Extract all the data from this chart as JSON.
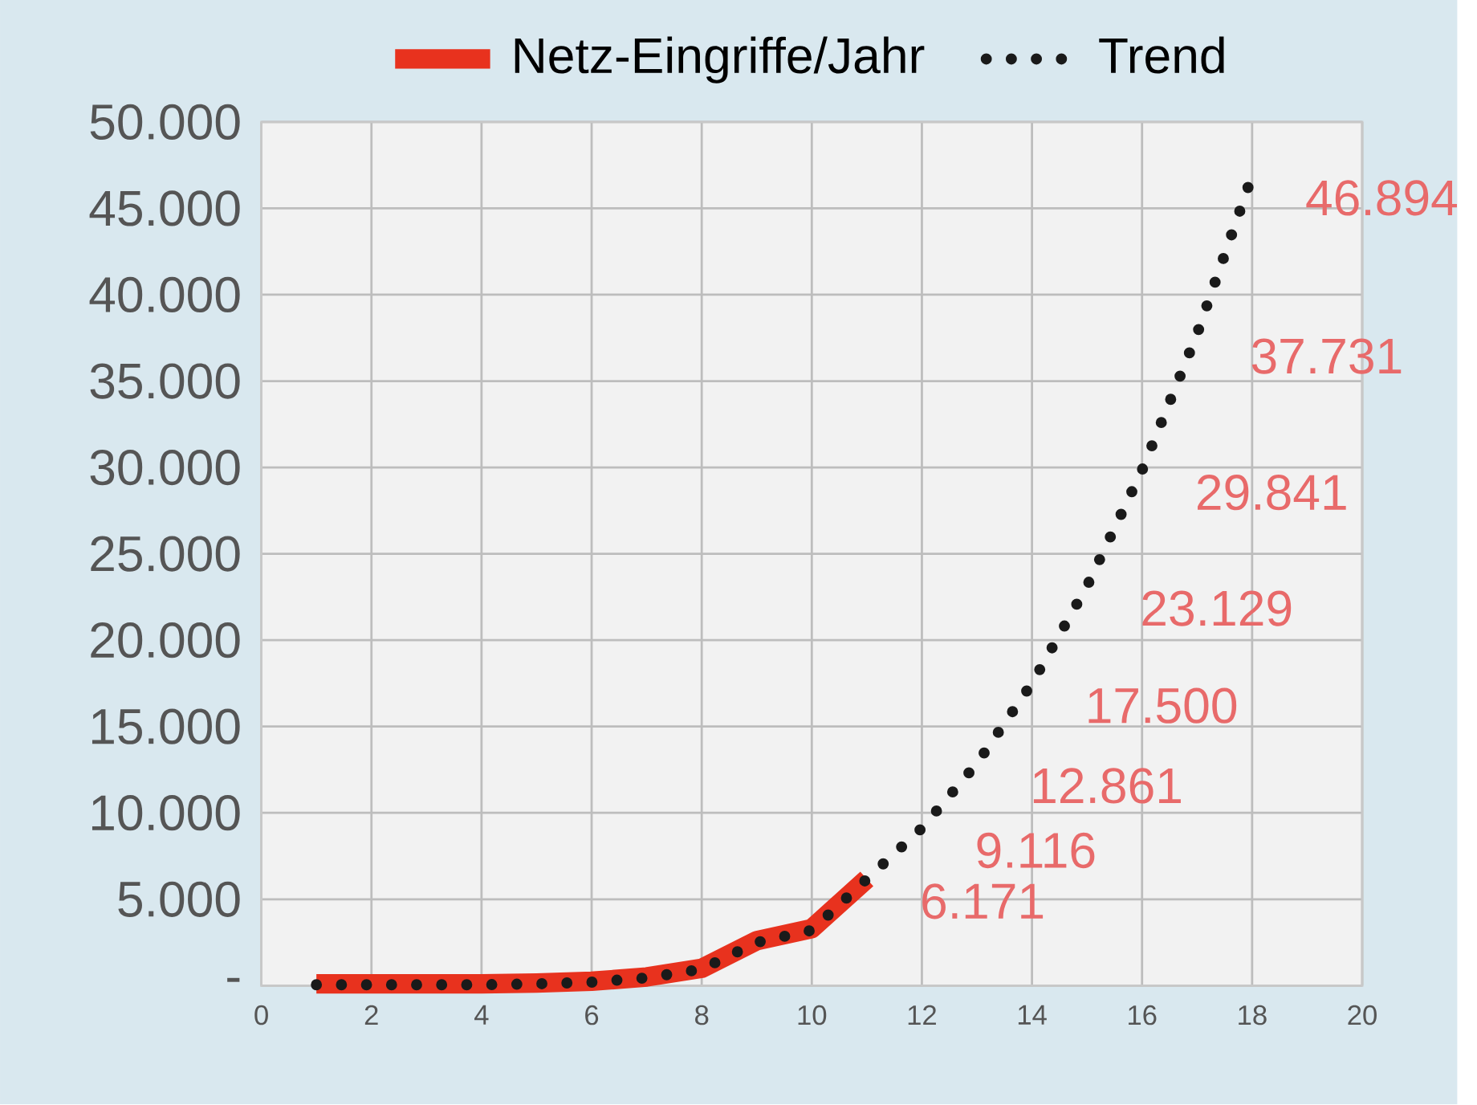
{
  "chart_data": {
    "type": "line",
    "x": [
      1,
      2,
      3,
      4,
      5,
      6,
      7,
      8,
      9,
      10,
      11
    ],
    "series": [
      {
        "name": "Netz-Eingriffe/Jahr",
        "color": "#e8321e",
        "line_style": "solid",
        "values": [
          100,
          100,
          100,
          100,
          150,
          250,
          500,
          1000,
          2600,
          3300,
          6171
        ]
      },
      {
        "name": "Trend",
        "color": "#1a1a1a",
        "line_style": "dotted",
        "x": [
          1,
          2,
          3,
          4,
          5,
          6,
          7,
          8,
          9,
          10,
          11,
          12,
          13,
          14,
          15,
          16,
          17,
          18
        ],
        "values": [
          50,
          50,
          50,
          50,
          100,
          200,
          450,
          950,
          2500,
          3200,
          6171,
          9116,
          12861,
          17500,
          23129,
          29841,
          37731,
          46894
        ],
        "value_labels": [
          null,
          null,
          null,
          null,
          null,
          null,
          null,
          null,
          null,
          null,
          "6.171",
          "9.116",
          "12.861",
          "17.500",
          "23.129",
          "29.841",
          "37.731",
          "46.894"
        ]
      }
    ],
    "xlim": [
      0,
      20
    ],
    "xticks": [
      0,
      2,
      4,
      6,
      8,
      10,
      12,
      14,
      16,
      18,
      20
    ],
    "ylim": [
      0,
      50000
    ],
    "yticks": [
      {
        "value": 0,
        "label": "-"
      },
      {
        "value": 5000,
        "label": "5.000"
      },
      {
        "value": 10000,
        "label": "10.000"
      },
      {
        "value": 15000,
        "label": "15.000"
      },
      {
        "value": 20000,
        "label": "20.000"
      },
      {
        "value": 25000,
        "label": "25.000"
      },
      {
        "value": 30000,
        "label": "30.000"
      },
      {
        "value": 35000,
        "label": "35.000"
      },
      {
        "value": 40000,
        "label": "40.000"
      },
      {
        "value": 45000,
        "label": "45.000"
      },
      {
        "value": 50000,
        "label": "50.000"
      }
    ],
    "grid": true,
    "legend": "top",
    "marker": "none"
  }
}
